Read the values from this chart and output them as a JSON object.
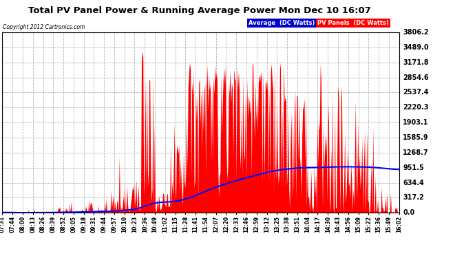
{
  "title": "Total PV Panel Power & Running Average Power Mon Dec 10 16:07",
  "copyright": "Copyright 2012 Cartronics.com",
  "legend_avg": "Average  (DC Watts)",
  "legend_pv": "PV Panels  (DC Watts)",
  "ylabel_values": [
    0.0,
    317.2,
    634.4,
    951.5,
    1268.7,
    1585.9,
    1903.1,
    2220.3,
    2537.4,
    2854.6,
    3171.8,
    3489.0,
    3806.2
  ],
  "ytop": 3806.2,
  "background_color": "#ffffff",
  "plot_bg_color": "#ffffff",
  "grid_color": "#aaaaaa",
  "bar_color": "#ff0000",
  "avg_color": "#0000ff",
  "xtick_labels": [
    "07:31",
    "07:44",
    "08:00",
    "08:13",
    "08:26",
    "08:39",
    "08:52",
    "09:05",
    "09:18",
    "09:31",
    "09:44",
    "09:57",
    "10:10",
    "10:23",
    "10:36",
    "10:49",
    "11:02",
    "11:15",
    "11:28",
    "11:41",
    "11:54",
    "12:07",
    "12:20",
    "12:33",
    "12:46",
    "12:59",
    "13:12",
    "13:25",
    "13:38",
    "13:51",
    "14:04",
    "14:17",
    "14:30",
    "14:43",
    "14:56",
    "15:09",
    "15:22",
    "15:36",
    "15:49",
    "16:02"
  ]
}
